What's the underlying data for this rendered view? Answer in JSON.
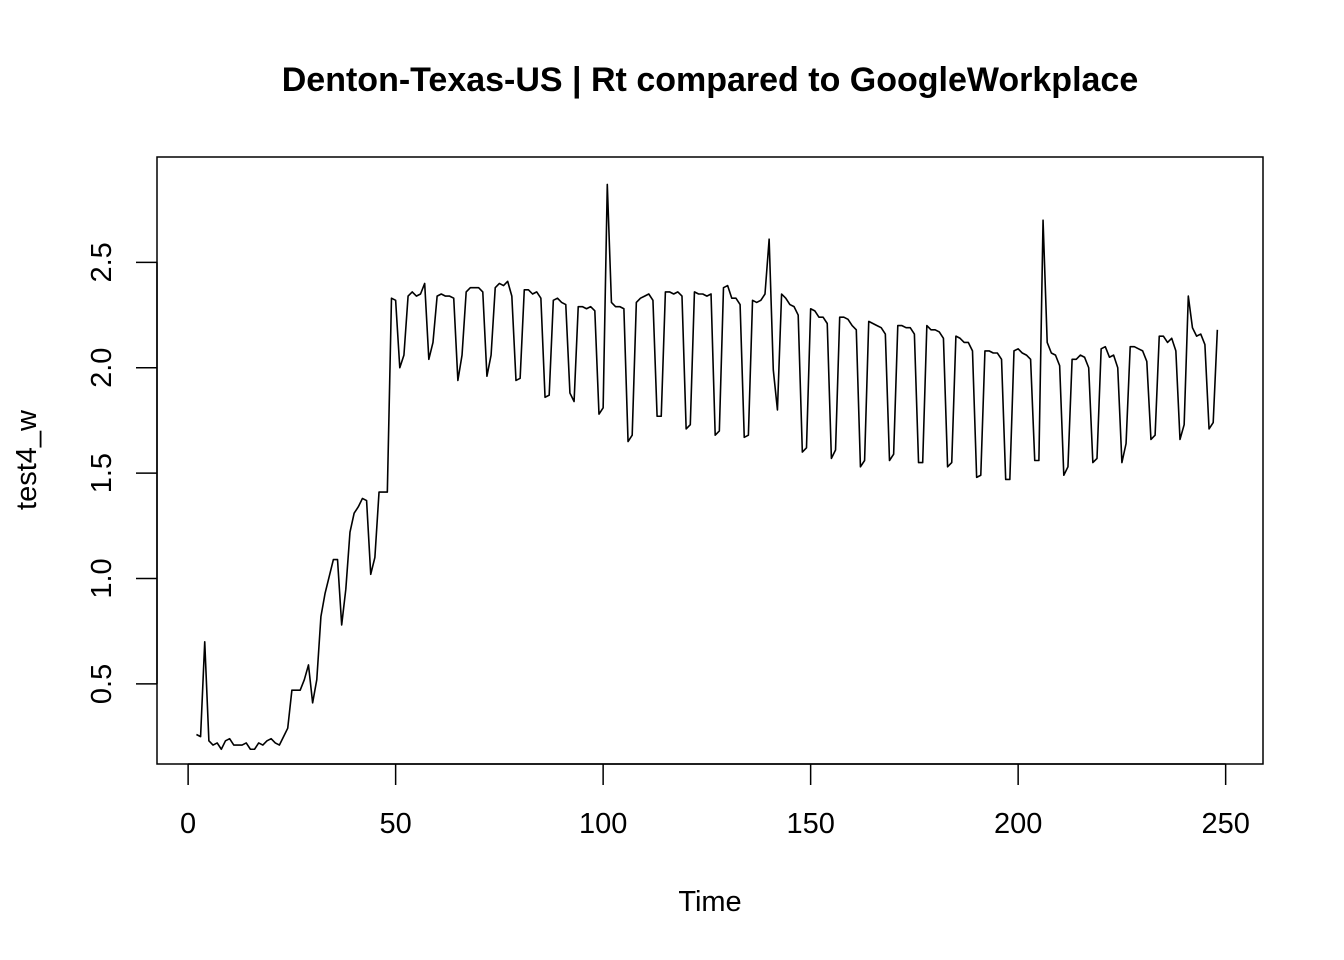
{
  "chart_data": {
    "type": "line",
    "title": "Denton-Texas-US | Rt compared to GoogleWorkplace",
    "xlabel": "Time",
    "ylabel": "test4_w",
    "xlim": [
      -7.5,
      259
    ],
    "ylim": [
      0.12,
      3.0
    ],
    "x_ticks": [
      "0",
      "50",
      "100",
      "150",
      "200",
      "250"
    ],
    "y_ticks": [
      "0.5",
      "1.0",
      "1.5",
      "2.0",
      "2.5"
    ],
    "grid": false,
    "legend": "none",
    "line_color": "#000000",
    "series": [
      {
        "x_start": 2,
        "values": [
          0.26,
          0.25,
          0.7,
          0.23,
          0.21,
          0.22,
          0.19,
          0.23,
          0.24,
          0.21,
          0.21,
          0.21,
          0.22,
          0.19,
          0.19,
          0.22,
          0.21,
          0.23,
          0.24,
          0.22,
          0.21,
          0.25,
          0.29,
          0.47,
          0.47,
          0.47,
          0.52,
          0.59,
          0.41,
          0.52,
          0.82,
          0.93,
          1.01,
          1.09,
          1.09,
          0.78,
          0.95,
          1.22,
          1.31,
          1.34,
          1.38,
          1.37,
          1.02,
          1.1,
          1.41,
          1.41,
          1.41,
          2.33,
          2.32,
          2.0,
          2.06,
          2.34,
          2.36,
          2.34,
          2.35,
          2.4,
          2.04,
          2.12,
          2.34,
          2.35,
          2.34,
          2.34,
          2.33,
          1.94,
          2.06,
          2.36,
          2.38,
          2.38,
          2.38,
          2.36,
          1.96,
          2.06,
          2.38,
          2.4,
          2.39,
          2.41,
          2.34,
          1.94,
          1.95,
          2.37,
          2.37,
          2.35,
          2.36,
          2.33,
          1.86,
          1.87,
          2.32,
          2.33,
          2.31,
          2.3,
          1.88,
          1.84,
          2.29,
          2.29,
          2.28,
          2.29,
          2.27,
          1.78,
          1.81,
          2.87,
          2.31,
          2.29,
          2.29,
          2.28,
          1.65,
          1.68,
          2.31,
          2.33,
          2.34,
          2.35,
          2.32,
          1.77,
          1.77,
          2.36,
          2.36,
          2.35,
          2.36,
          2.34,
          1.71,
          1.73,
          2.36,
          2.35,
          2.35,
          2.34,
          2.35,
          1.68,
          1.7,
          2.38,
          2.39,
          2.33,
          2.33,
          2.3,
          1.67,
          1.68,
          2.32,
          2.31,
          2.32,
          2.35,
          2.61,
          1.99,
          1.8,
          2.35,
          2.33,
          2.3,
          2.29,
          2.25,
          1.6,
          1.62,
          2.28,
          2.27,
          2.24,
          2.24,
          2.21,
          1.57,
          1.61,
          2.24,
          2.24,
          2.23,
          2.2,
          2.18,
          1.53,
          1.56,
          2.22,
          2.21,
          2.2,
          2.19,
          2.16,
          1.56,
          1.59,
          2.2,
          2.2,
          2.19,
          2.19,
          2.16,
          1.55,
          1.55,
          2.2,
          2.18,
          2.18,
          2.17,
          2.14,
          1.53,
          1.55,
          2.15,
          2.14,
          2.12,
          2.12,
          2.08,
          1.48,
          1.49,
          2.08,
          2.08,
          2.07,
          2.07,
          2.04,
          1.47,
          1.47,
          2.08,
          2.09,
          2.07,
          2.06,
          2.04,
          1.56,
          1.56,
          2.7,
          2.12,
          2.07,
          2.06,
          2.01,
          1.49,
          1.53,
          2.04,
          2.04,
          2.06,
          2.05,
          2.0,
          1.55,
          1.57,
          2.09,
          2.1,
          2.05,
          2.06,
          2.0,
          1.55,
          1.64,
          2.1,
          2.1,
          2.09,
          2.08,
          2.03,
          1.66,
          1.68,
          2.15,
          2.15,
          2.12,
          2.14,
          2.08,
          1.66,
          1.73,
          2.34,
          2.19,
          2.15,
          2.16,
          2.11,
          1.71,
          1.74,
          2.18
        ]
      }
    ]
  }
}
